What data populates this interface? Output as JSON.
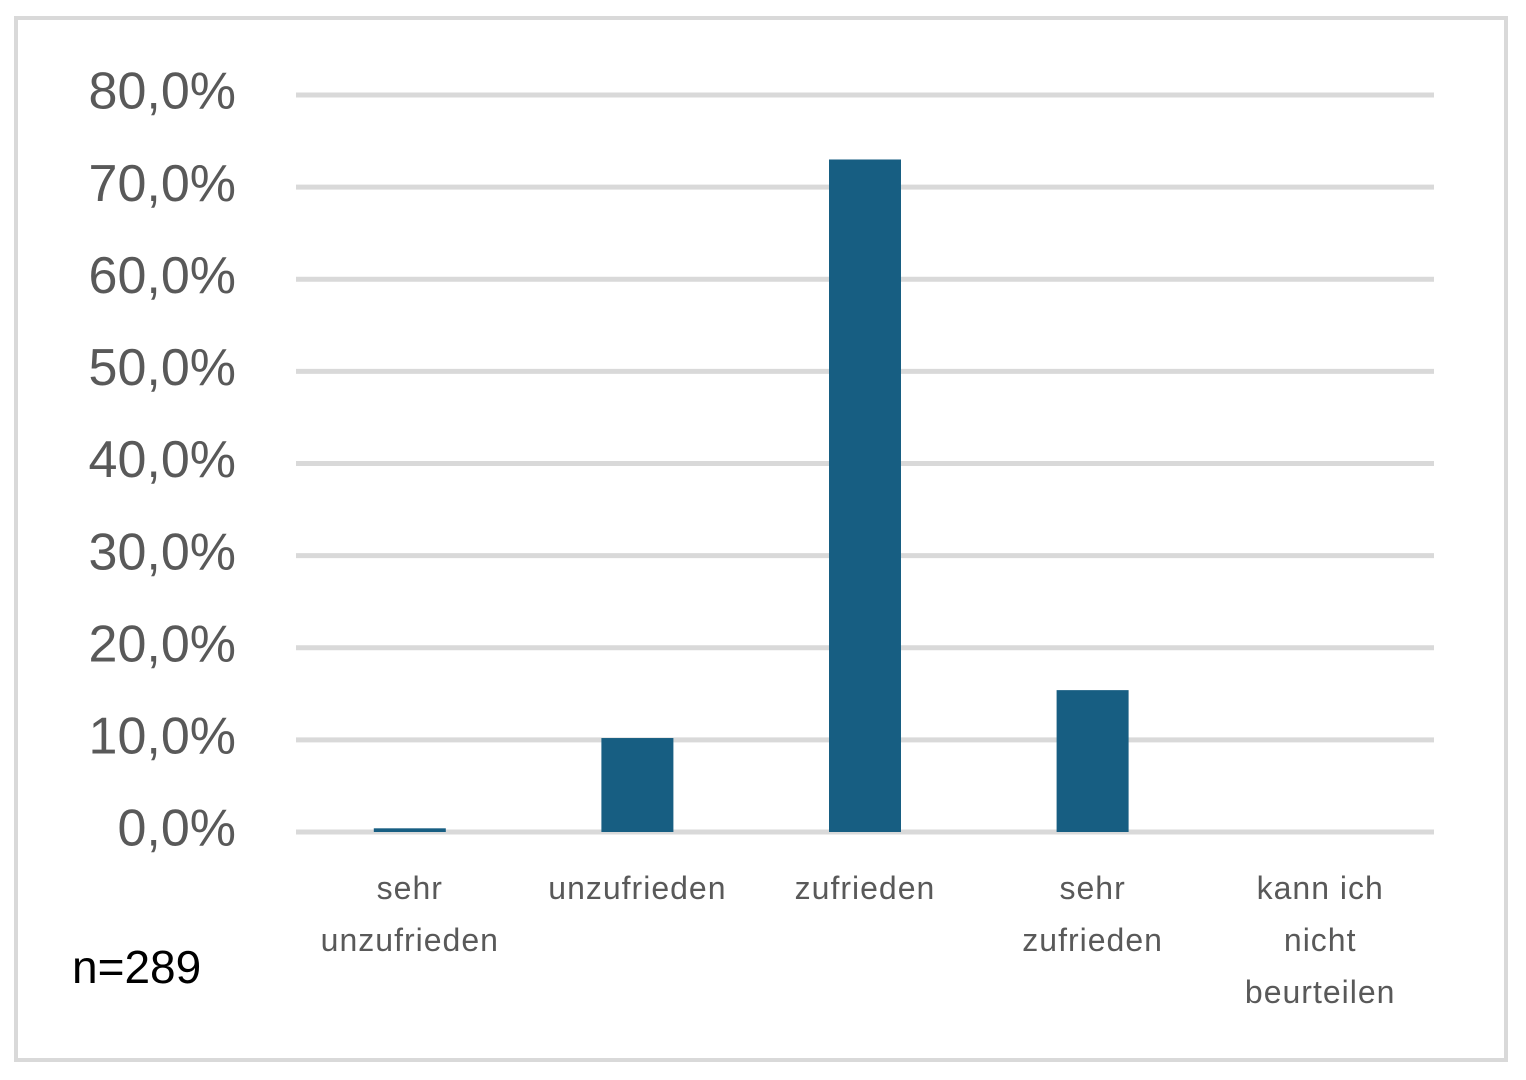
{
  "chart_data": {
    "type": "bar",
    "categories": [
      "sehr unzufrieden",
      "unzufrieden",
      "zufrieden",
      "sehr zufrieden",
      "kann ich nicht beurteilen"
    ],
    "values": [
      0.4,
      10.2,
      73.0,
      15.4,
      0
    ],
    "color": "#175e82",
    "ylim": [
      0,
      80
    ],
    "yticks": [
      {
        "value": 0,
        "label": "0,0%"
      },
      {
        "value": 10,
        "label": "10,0%"
      },
      {
        "value": 20,
        "label": "20,0%"
      },
      {
        "value": 30,
        "label": "30,0%"
      },
      {
        "value": 40,
        "label": "40,0%"
      },
      {
        "value": 50,
        "label": "50,0%"
      },
      {
        "value": 60,
        "label": "60,0%"
      },
      {
        "value": 70,
        "label": "70,0%"
      },
      {
        "value": 80,
        "label": "80,0%"
      }
    ],
    "grid": true,
    "annotation": "n=289"
  }
}
